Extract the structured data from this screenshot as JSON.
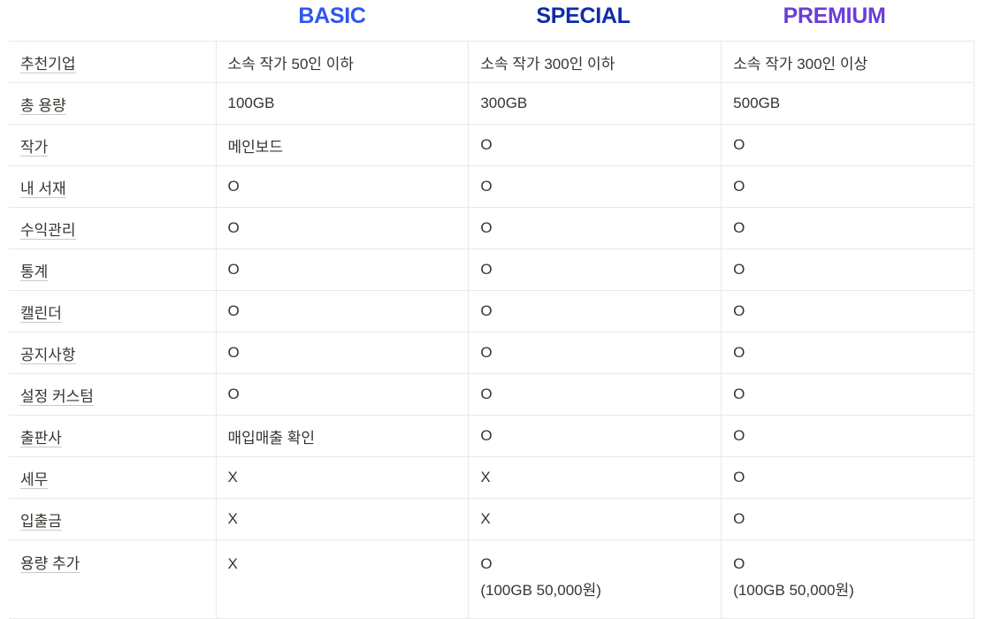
{
  "plans": [
    {
      "name": "BASIC",
      "color": "#2f56f2"
    },
    {
      "name": "SPECIAL",
      "color": "#0f2ca8"
    },
    {
      "name": "PREMIUM",
      "color": "#6b3ed6"
    }
  ],
  "rows": [
    {
      "feature": "추천기업",
      "basic": "소속 작가 50인 이하",
      "special": "소속 작가 300인 이하",
      "premium": "소속 작가 300인 이상"
    },
    {
      "feature": "총 용량",
      "basic": "100GB",
      "special": "300GB",
      "premium": "500GB"
    },
    {
      "feature": "작가",
      "basic": "메인보드",
      "special": "O",
      "premium": "O"
    },
    {
      "feature": "내 서재",
      "basic": "O",
      "special": "O",
      "premium": "O"
    },
    {
      "feature": "수익관리",
      "basic": "O",
      "special": "O",
      "premium": "O"
    },
    {
      "feature": "통계",
      "basic": "O",
      "special": "O",
      "premium": "O"
    },
    {
      "feature": "캘린더",
      "basic": "O",
      "special": "O",
      "premium": "O"
    },
    {
      "feature": "공지사항",
      "basic": "O",
      "special": "O",
      "premium": "O"
    },
    {
      "feature": "설정 커스텀",
      "basic": "O",
      "special": "O",
      "premium": "O"
    },
    {
      "feature": "출판사",
      "basic": "매입매출 확인",
      "special": "O",
      "premium": "O"
    },
    {
      "feature": "세무",
      "basic": "X",
      "special": "X",
      "premium": "O"
    },
    {
      "feature": "입출금",
      "basic": "X",
      "special": "X",
      "premium": "O"
    }
  ],
  "last_row": {
    "feature": "용량 추가",
    "basic": "X",
    "special": "O",
    "special_note": "(100GB 50,000원)",
    "premium": "O",
    "premium_note": "(100GB 50,000원)"
  }
}
